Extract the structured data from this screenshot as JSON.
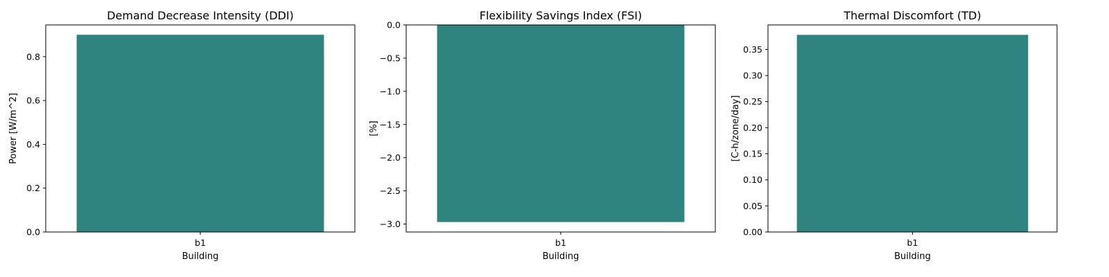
{
  "chart_data": [
    {
      "type": "bar",
      "title": "Demand Decrease Intensity (DDI)",
      "xlabel": "Building",
      "ylabel": "Power [W/m^2]",
      "categories": [
        "b1"
      ],
      "values": [
        0.9
      ],
      "ylim": [
        0,
        0.945
      ],
      "yticks": [
        0.0,
        0.2,
        0.4,
        0.6,
        0.8
      ],
      "ytick_labels": [
        "0.0",
        "0.2",
        "0.4",
        "0.6",
        "0.8"
      ],
      "bar_color": "#2e837e",
      "grid": false
    },
    {
      "type": "bar",
      "title": "Flexibility Savings Index (FSI)",
      "xlabel": "Building",
      "ylabel": "[%]",
      "categories": [
        "b1"
      ],
      "values": [
        -2.97
      ],
      "ylim": [
        -3.12,
        0
      ],
      "yticks": [
        0.0,
        -0.5,
        -1.0,
        -1.5,
        -2.0,
        -2.5,
        -3.0
      ],
      "ytick_labels": [
        "0.0",
        "−0.5",
        "−1.0",
        "−1.5",
        "−2.0",
        "−2.5",
        "−3.0"
      ],
      "bar_color": "#2e837e",
      "grid": false
    },
    {
      "type": "bar",
      "title": "Thermal Discomfort (TD)",
      "xlabel": "Building",
      "ylabel": "[C-h/zone/day]",
      "categories": [
        "b1"
      ],
      "values": [
        0.378
      ],
      "ylim": [
        0,
        0.397
      ],
      "yticks": [
        0.0,
        0.05,
        0.1,
        0.15,
        0.2,
        0.25,
        0.3,
        0.35
      ],
      "ytick_labels": [
        "0.00",
        "0.05",
        "0.10",
        "0.15",
        "0.20",
        "0.25",
        "0.30",
        "0.35"
      ],
      "bar_color": "#2e837e",
      "grid": false
    }
  ]
}
